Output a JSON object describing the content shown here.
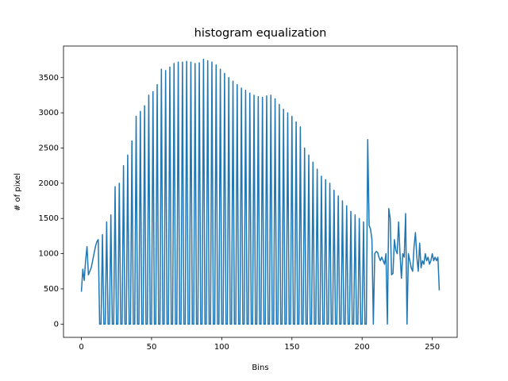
{
  "chart_data": {
    "type": "line",
    "title": "histogram equalization",
    "x_label": "Bins",
    "y_label": "# of pixel",
    "color": "#1f77b4",
    "x": [
      0,
      1,
      2,
      3,
      4,
      5,
      6,
      7,
      8,
      9,
      10,
      11,
      12,
      13,
      14,
      15,
      16,
      17,
      18,
      19,
      20,
      21,
      22,
      23,
      24,
      25,
      26,
      27,
      28,
      29,
      30,
      31,
      32,
      33,
      34,
      35,
      36,
      37,
      38,
      39,
      40,
      41,
      42,
      43,
      44,
      45,
      46,
      47,
      48,
      49,
      50,
      51,
      52,
      53,
      54,
      55,
      56,
      57,
      58,
      59,
      60,
      61,
      62,
      63,
      64,
      65,
      66,
      67,
      68,
      69,
      70,
      71,
      72,
      73,
      74,
      75,
      76,
      77,
      78,
      79,
      80,
      81,
      82,
      83,
      84,
      85,
      86,
      87,
      88,
      89,
      90,
      91,
      92,
      93,
      94,
      95,
      96,
      97,
      98,
      99,
      100,
      101,
      102,
      103,
      104,
      105,
      106,
      107,
      108,
      109,
      110,
      111,
      112,
      113,
      114,
      115,
      116,
      117,
      118,
      119,
      120,
      121,
      122,
      123,
      124,
      125,
      126,
      127,
      128,
      129,
      130,
      131,
      132,
      133,
      134,
      135,
      136,
      137,
      138,
      139,
      140,
      141,
      142,
      143,
      144,
      145,
      146,
      147,
      148,
      149,
      150,
      151,
      152,
      153,
      154,
      155,
      156,
      157,
      158,
      159,
      160,
      161,
      162,
      163,
      164,
      165,
      166,
      167,
      168,
      169,
      170,
      171,
      172,
      173,
      174,
      175,
      176,
      177,
      178,
      179,
      180,
      181,
      182,
      183,
      184,
      185,
      186,
      187,
      188,
      189,
      190,
      191,
      192,
      193,
      194,
      195,
      196,
      197,
      198,
      199,
      200,
      201,
      202,
      203,
      204,
      205,
      206,
      207,
      208,
      209,
      210,
      211,
      212,
      213,
      214,
      215,
      216,
      217,
      218,
      219,
      220,
      221,
      222,
      223,
      224,
      225,
      226,
      227,
      228,
      229,
      230,
      231,
      232,
      233,
      234,
      235,
      236,
      237,
      238,
      239,
      240,
      241,
      242,
      243,
      244,
      245,
      246,
      247,
      248,
      249,
      250,
      251,
      252,
      253,
      254,
      255
    ],
    "values": [
      460,
      780,
      620,
      900,
      1100,
      700,
      750,
      800,
      900,
      1000,
      1100,
      1170,
      1200,
      0,
      0,
      1270,
      0,
      0,
      1450,
      0,
      0,
      1550,
      0,
      0,
      1950,
      0,
      0,
      2000,
      0,
      0,
      2250,
      0,
      0,
      2400,
      0,
      0,
      2600,
      0,
      0,
      2950,
      0,
      0,
      3020,
      0,
      0,
      3100,
      0,
      0,
      3250,
      0,
      0,
      3300,
      0,
      0,
      3400,
      0,
      0,
      3620,
      0,
      0,
      3600,
      0,
      0,
      3650,
      0,
      0,
      3700,
      0,
      0,
      3720,
      0,
      0,
      3720,
      0,
      0,
      3730,
      0,
      0,
      3720,
      0,
      0,
      3700,
      0,
      0,
      3710,
      0,
      0,
      3760,
      0,
      0,
      3740,
      0,
      0,
      3720,
      0,
      0,
      3680,
      0,
      0,
      3620,
      0,
      0,
      3560,
      0,
      0,
      3500,
      0,
      0,
      3450,
      0,
      0,
      3400,
      0,
      0,
      3350,
      0,
      0,
      3320,
      0,
      0,
      3280,
      0,
      0,
      3250,
      0,
      0,
      3230,
      0,
      0,
      3220,
      0,
      0,
      3240,
      0,
      0,
      3250,
      0,
      0,
      3200,
      0,
      0,
      3120,
      0,
      0,
      3050,
      0,
      0,
      3000,
      0,
      0,
      2950,
      0,
      0,
      2870,
      0,
      0,
      2800,
      0,
      0,
      2500,
      0,
      0,
      2400,
      0,
      0,
      2300,
      0,
      0,
      2200,
      0,
      0,
      2100,
      0,
      0,
      2050,
      0,
      0,
      2000,
      0,
      0,
      1900,
      0,
      0,
      1820,
      0,
      0,
      1750,
      0,
      0,
      1680,
      0,
      0,
      1600,
      0,
      0,
      1550,
      0,
      0,
      1500,
      0,
      0,
      1450,
      0,
      0,
      2620,
      1400,
      1350,
      1200,
      0,
      1000,
      1030,
      1020,
      950,
      900,
      950,
      900,
      850,
      1000,
      0,
      1640,
      1500,
      700,
      720,
      1200,
      1050,
      1000,
      1450,
      1000,
      650,
      1000,
      950,
      1570,
      0,
      1000,
      900,
      800,
      750,
      1100,
      1300,
      950,
      750,
      1150,
      800,
      900,
      850,
      1000,
      900,
      950,
      850,
      900,
      1000,
      900,
      950,
      900,
      950,
      480
    ],
    "xlim": [
      -12.75,
      267.75
    ],
    "ylim": [
      -188,
      3948
    ],
    "xticks": [
      0,
      50,
      100,
      150,
      200,
      250
    ],
    "yticks": [
      0,
      500,
      1000,
      1500,
      2000,
      2500,
      3000,
      3500
    ]
  }
}
